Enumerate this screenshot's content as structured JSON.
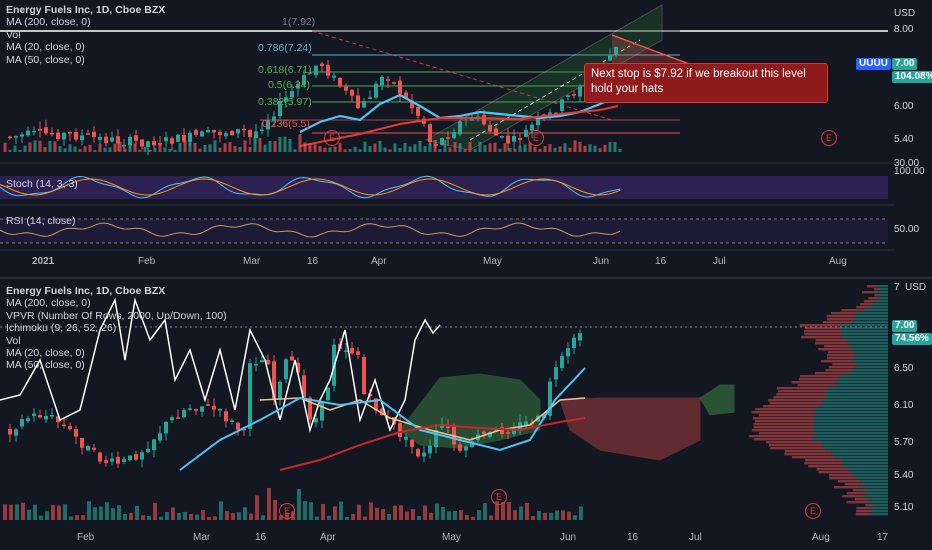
{
  "top": {
    "legend": [
      "Energy Fuels Inc, 1D, Cboe BZX",
      "MA (200, close, 0)",
      "Vol",
      "MA (20, close, 0)",
      "MA (50, close, 0)"
    ],
    "fib": [
      "1(7.92)",
      "0.786(7.24)",
      "0.618(6.71)",
      "0.5(6.34)",
      "0.382(5.97)",
      "0.236(5.5)"
    ],
    "currency": "USD",
    "price_labels": [
      "8.00",
      "6.00",
      "5.40"
    ],
    "ticker": "UUUU",
    "last_price": "7.00",
    "change": "104.08%",
    "callout": "Next stop is $7.92  if we breakout this level\nhold your hats",
    "stoch_label": "Stoch (14, 3, 3)",
    "stoch_scale": [
      "30.00",
      "100.00"
    ],
    "rsi_label": "RSI (14, close)",
    "rsi_scale": "50.00",
    "time_labels": [
      "2021",
      "Feb",
      "Mar",
      "16",
      "Apr",
      "May",
      "Jun",
      "16",
      "Jul",
      "Aug"
    ],
    "earnings": "E"
  },
  "bottom": {
    "legend": [
      "Energy Fuels Inc, 1D, Cboe BZX",
      "MA (200, close, 0)",
      "VPVR (Number Of Rows, 2000, Up/Down, 100)",
      "Ichimoku (9, 26, 52, 26)",
      "Vol",
      "MA (20, close, 0)",
      "MA (50, close, 0)"
    ],
    "currency": "USD",
    "price_labels": [
      "7",
      "6.50",
      "6.10",
      "5.70",
      "5.40",
      "5.10"
    ],
    "last_price": "7.00",
    "change": "74.56%",
    "time_labels": [
      "Feb",
      "Mar",
      "16",
      "Apr",
      "May",
      "Jun",
      "16",
      "Jul",
      "Aug",
      "17"
    ],
    "earnings": "E"
  },
  "colors": {
    "up": "#26a69a",
    "down": "#ef5350",
    "bg": "#131722"
  }
}
